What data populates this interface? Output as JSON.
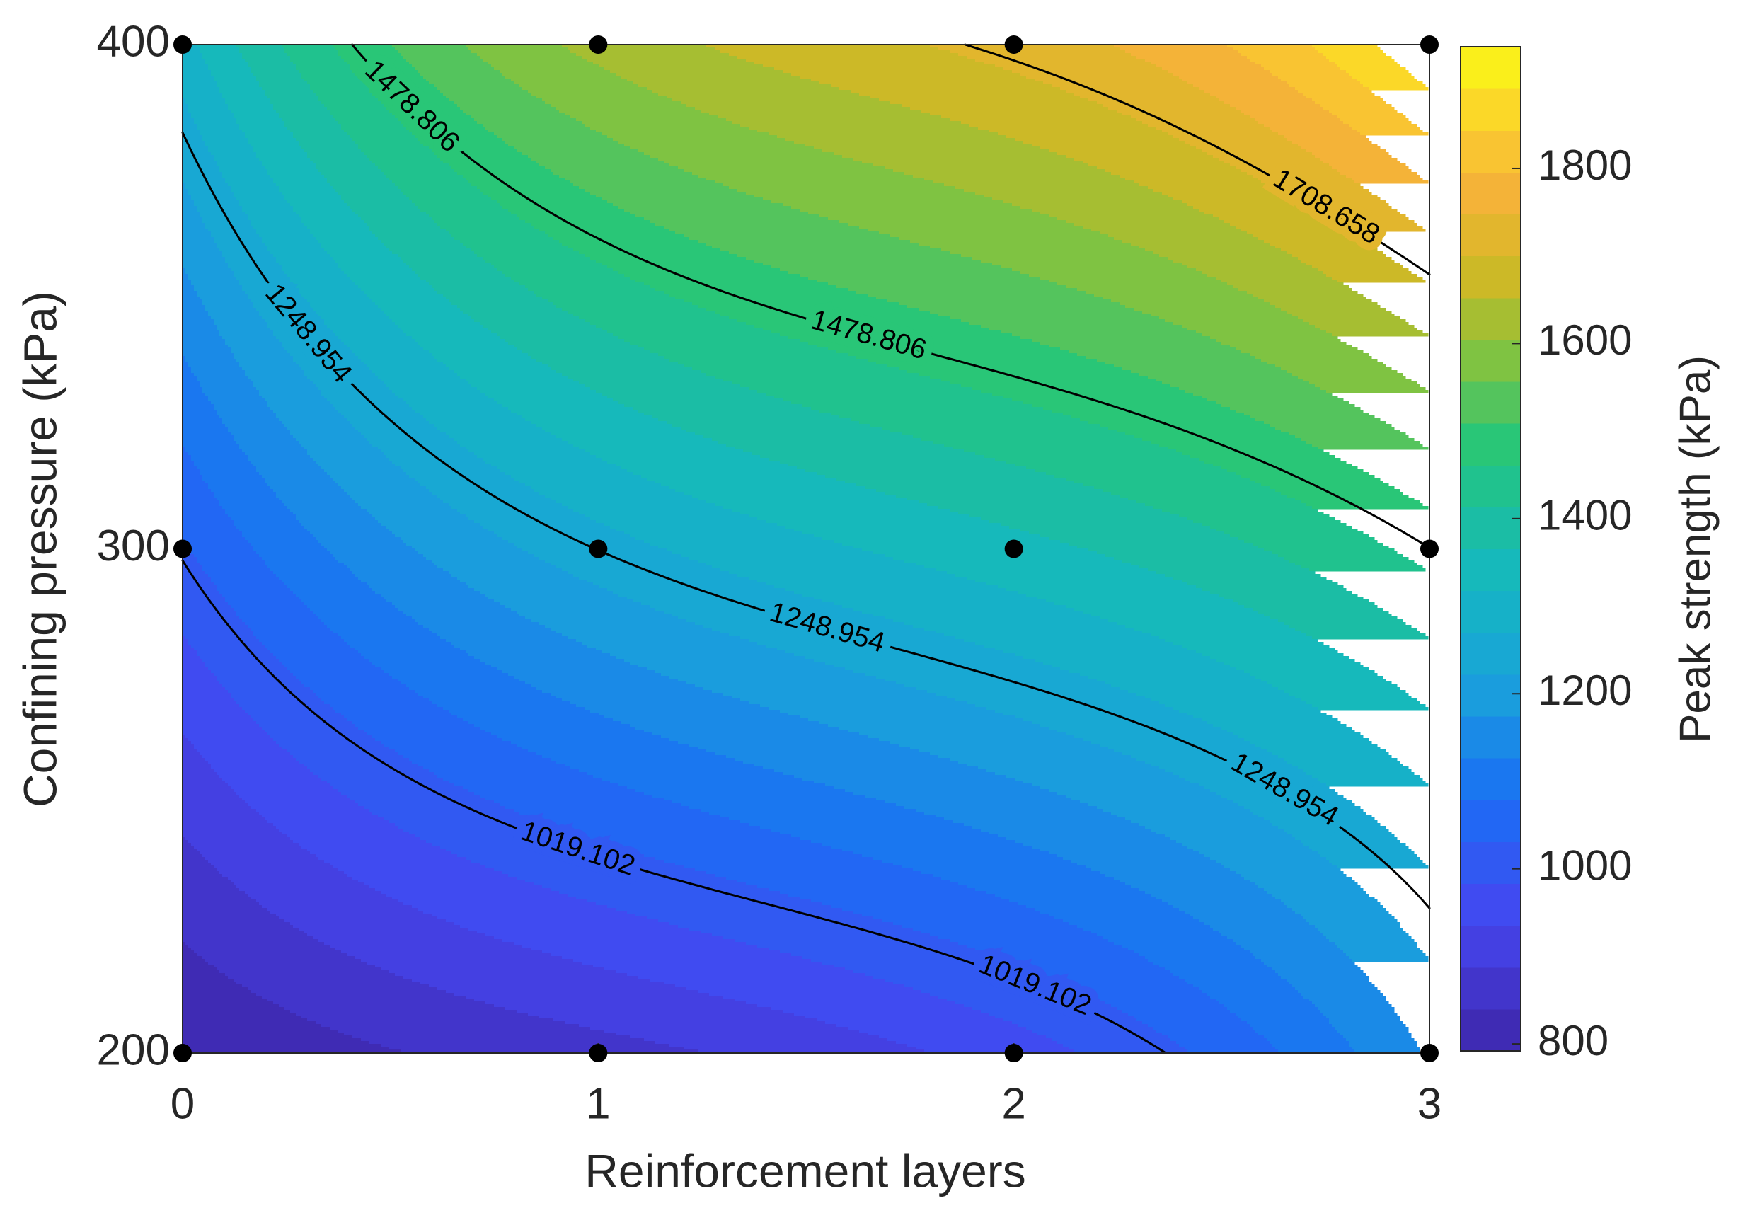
{
  "chart_data": {
    "type": "contour",
    "x": [
      0,
      1,
      2,
      3
    ],
    "y": [
      200,
      300,
      400
    ],
    "z": [
      [
        792,
        870,
        960,
        1180
      ],
      [
        1025,
        1250,
        1350,
        1478
      ],
      [
        1300,
        1620,
        1720,
        1939
      ]
    ],
    "levels": [
      1019.102,
      1248.954,
      1478.806,
      1708.658
    ],
    "xlim": [
      0,
      3
    ],
    "ylim": [
      200,
      400
    ],
    "xticks": [
      0,
      1,
      2,
      3
    ],
    "yticks": [
      200,
      300,
      400
    ],
    "clim": [
      792,
      1939
    ],
    "cticks": [
      800,
      1000,
      1200,
      1400,
      1600,
      1800
    ],
    "colormap": "parula",
    "line_color": "#000000",
    "point_color": "#000000",
    "xlabel": "Reinforcement layers",
    "ylabel": "Confining pressure (kPa)",
    "colorbar_label": "Peak strength (kPa)"
  }
}
